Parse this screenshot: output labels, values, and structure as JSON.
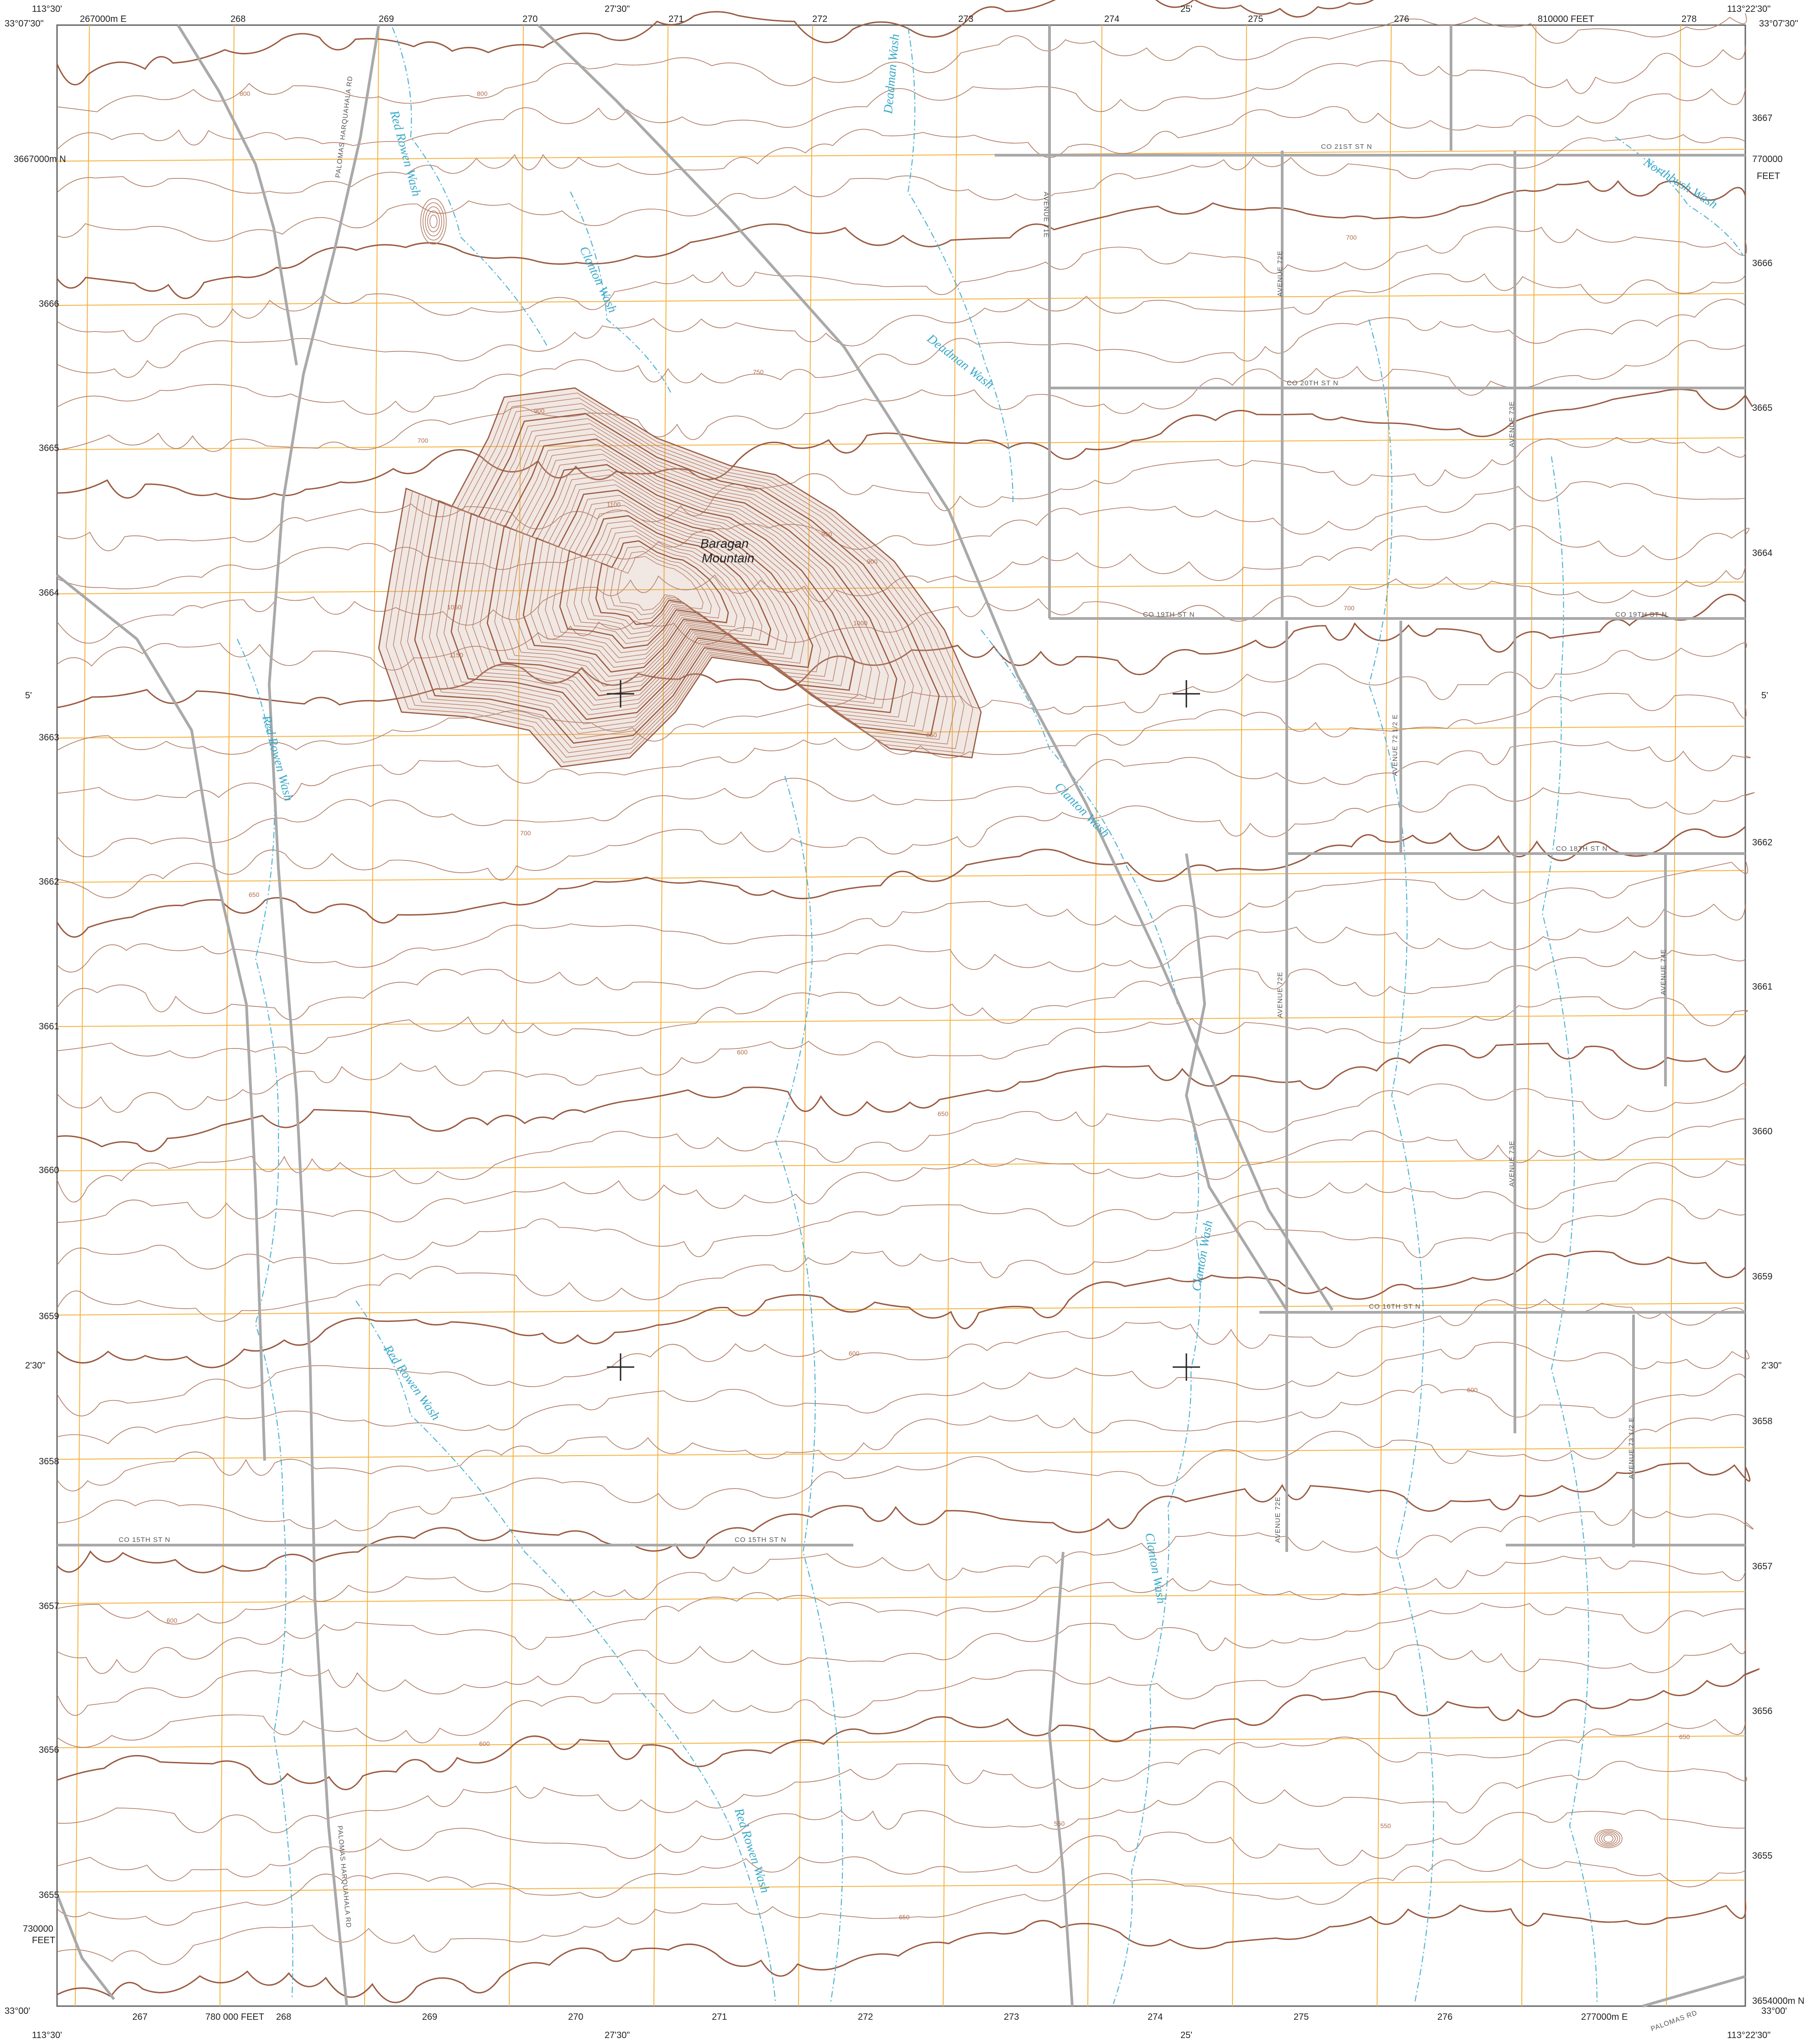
{
  "map": {
    "colors": {
      "contour": "#b07a62",
      "index_contour": "#9a5a40",
      "mountain_fill": "#c8a090",
      "water": "#4fb3d4",
      "grid": "#f5b342",
      "road": "#a9a9a9",
      "neatline": "#666666"
    },
    "corner_labels": {
      "top_left_lon": "113°30'",
      "top_left_lat": "33°07'30\"",
      "top_right_lon": "113°22'30\"",
      "top_right_lat": "33°07'30\"",
      "bottom_left_lon": "113°30'",
      "bottom_left_lat": "33°00'",
      "bottom_right_lon": "113°22'30\"",
      "bottom_right_lat": "33°00'"
    },
    "top_ticks": [
      "267000m E",
      "268",
      "269",
      "270",
      "27'30\"",
      "271",
      "272",
      "273",
      "274",
      "25'",
      "275",
      "276",
      "810000 FEET",
      "278"
    ],
    "bottom_ticks": [
      "267",
      "780 000 FEET",
      "268",
      "269",
      "270",
      "27'30\"",
      "271",
      "272",
      "273",
      "274",
      "25'",
      "275",
      "276",
      "277000m E"
    ],
    "left_ticks": [
      "3667000m N",
      "3666",
      "3665",
      "3664",
      "5'",
      "3663",
      "3662",
      "3661",
      "3660",
      "3659",
      "2'30\"",
      "3658",
      "3657",
      "3656",
      "3655",
      "730000",
      "FEET"
    ],
    "right_ticks": [
      "3667",
      "770000",
      "FEET",
      "3666",
      "3665",
      "3664",
      "5'",
      "3662",
      "3661",
      "3660",
      "3659",
      "2'30\"",
      "3658",
      "3657",
      "3656",
      "3655",
      "3654000m N"
    ],
    "place_name_line1": "Baragan",
    "place_name_line2": "Mountain",
    "water_labels": [
      "Red Rowen Wash",
      "Clanton Wash",
      "Deadman Wash",
      "Deadman Wash",
      "Northbush Wash",
      "Red Rowen Wash",
      "Clanton Wash",
      "Red Rowen Wash",
      "Clanton Wash",
      "Clanton Wash",
      "Red Rowen Wash"
    ],
    "road_labels": [
      "CO 21ST ST N",
      "CO 20TH ST N",
      "CO 19TH ST N",
      "CO 19TH ST N",
      "CO 18TH ST N",
      "CO 16TH ST N",
      "CO 15TH ST N",
      "CO 15TH ST N",
      "AVENUE 71E",
      "AVENUE 72E",
      "AVENUE 73E",
      "AVENUE 72 1/2 E",
      "AVENUE 74E",
      "AVENUE 72E",
      "AVENUE 73E",
      "AVENUE 73 1/2 E",
      "AVENUE 72E",
      "PALOMAS HARQUAHALA RD",
      "PALOMAS HARQUAHALA RD",
      "PALOMAS RD"
    ],
    "elevation_labels": [
      "800",
      "800",
      "700",
      "750",
      "700",
      "900",
      "1050",
      "1150",
      "1100",
      "1000",
      "950",
      "900",
      "850",
      "700",
      "700",
      "650",
      "600",
      "650",
      "600",
      "600",
      "550",
      "550",
      "600",
      "650",
      "650",
      "600"
    ]
  }
}
